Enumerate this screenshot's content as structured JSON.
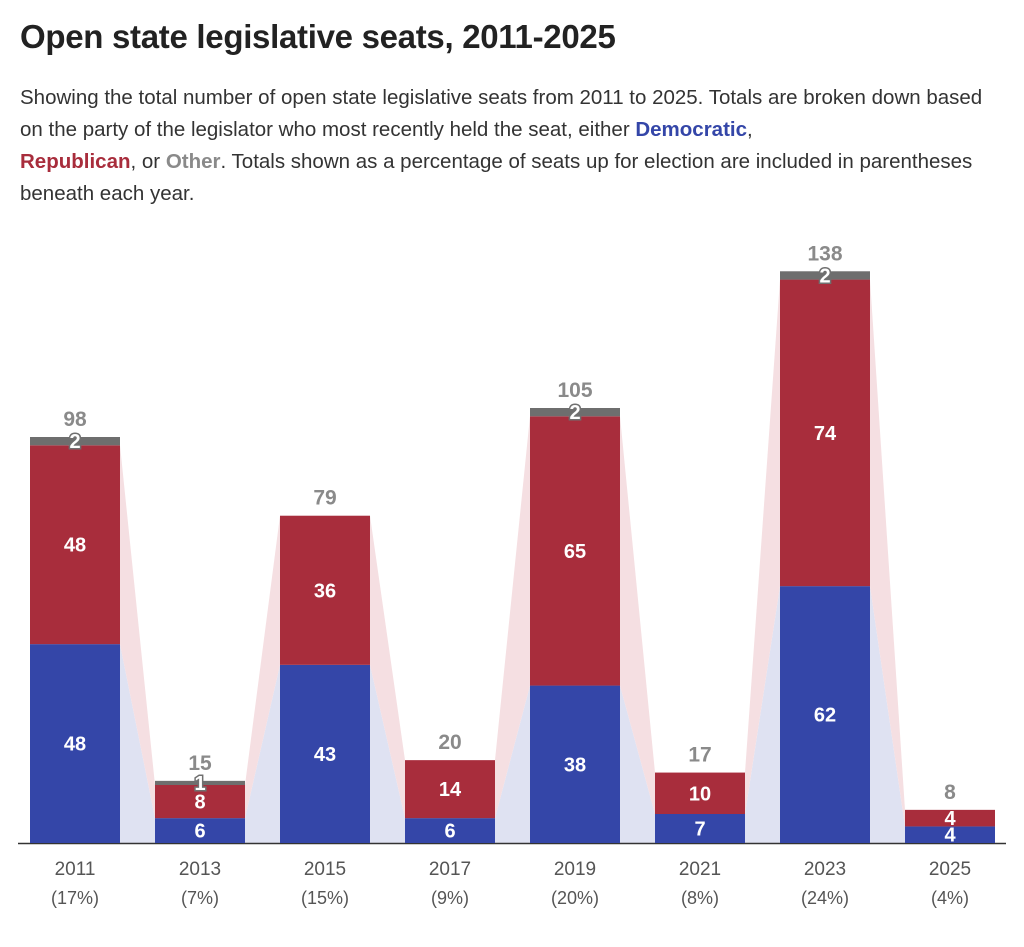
{
  "title": "Open state legislative seats, 2011-2025",
  "subtitle": {
    "before": "Showing the total number of open state legislative seats from 2011 to 2025. Totals are broken down based on the party of the legislator who most recently held the seat, either ",
    "democratic": "Democratic",
    "sep1": ",",
    "republican": "Republican",
    "sep2": ", or ",
    "other": "Other",
    "after": ". Totals shown as a percentage of seats up for election are included in parentheses beneath each year."
  },
  "colors": {
    "democratic": "#3446a8",
    "republican": "#a82d3c",
    "other": "#6e6e6e",
    "democratic_band": "#dfe2f2",
    "republican_band": "#f5dfe2",
    "total_label": "#8a8a8a",
    "axis_label": "#555555"
  },
  "chart_data": {
    "type": "bar",
    "stacked": true,
    "categories": [
      "2011",
      "2013",
      "2015",
      "2017",
      "2019",
      "2021",
      "2023",
      "2025"
    ],
    "percent_labels": [
      "(17%)",
      "(7%)",
      "(15%)",
      "(9%)",
      "(20%)",
      "(8%)",
      "(24%)",
      "(4%)"
    ],
    "series": [
      {
        "name": "Democratic",
        "values": [
          48,
          6,
          43,
          6,
          38,
          7,
          62,
          4
        ]
      },
      {
        "name": "Republican",
        "values": [
          48,
          8,
          36,
          14,
          65,
          10,
          74,
          4
        ]
      },
      {
        "name": "Other",
        "values": [
          2,
          1,
          0,
          0,
          2,
          0,
          2,
          0
        ]
      }
    ],
    "totals": [
      98,
      15,
      79,
      20,
      105,
      17,
      138,
      8
    ],
    "ylim": [
      0,
      140
    ],
    "grid": false,
    "legend": "inline in subtitle"
  }
}
